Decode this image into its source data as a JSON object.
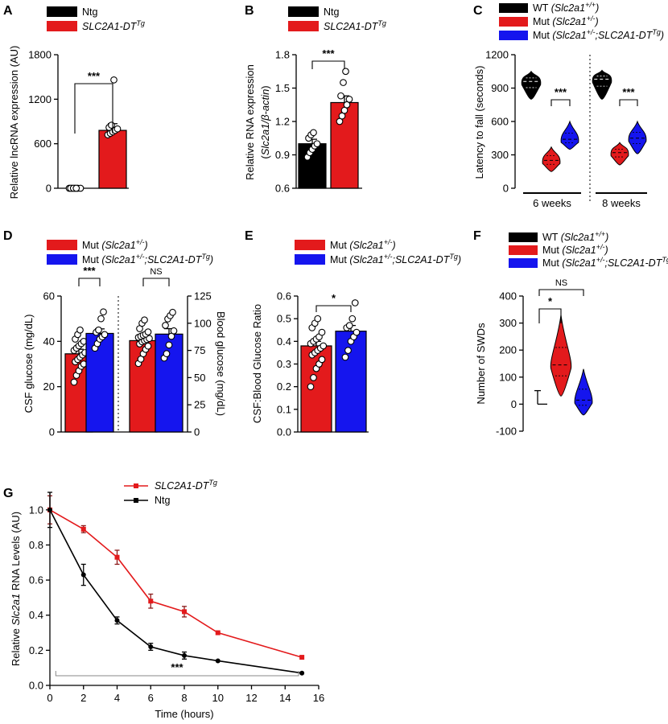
{
  "colors": {
    "ntg": "#000000",
    "tg": "#e31a1c",
    "mut": "#e31a1c",
    "mut_tg": "#1515ee",
    "wt": "#000000"
  },
  "panels": {
    "A": {
      "label": "A"
    },
    "B": {
      "label": "B"
    },
    "C": {
      "label": "C"
    },
    "D": {
      "label": "D"
    },
    "E": {
      "label": "E"
    },
    "F": {
      "label": "F"
    },
    "G": {
      "label": "G"
    }
  },
  "legends": {
    "A": [
      {
        "base": "Ntg",
        "sup": ""
      },
      {
        "base": "SLC2A1-DT",
        "sup": "Tg"
      }
    ],
    "B": [
      {
        "base": "Ntg",
        "sup": ""
      },
      {
        "base": "SLC2A1-DT",
        "sup": "Tg"
      }
    ],
    "C": [
      {
        "base": "WT (Slc2a1",
        "sup": "+/+",
        "tail": ")"
      },
      {
        "base": "Mut (Slc2a1",
        "sup": "+/-",
        "tail": ")"
      },
      {
        "base": "Mut (Slc2a1",
        "sup": "+/-",
        "mid": ";SLC2A1-DT",
        "sup2": "Tg",
        "tail": ")"
      }
    ],
    "D": [
      {
        "base": "Mut (Slc2a1",
        "sup": "+/-",
        "tail": ")"
      },
      {
        "base": "Mut (Slc2a1",
        "sup": "+/-",
        "mid": ";SLC2A1-DT",
        "sup2": "Tg",
        "tail": ")"
      }
    ],
    "E": [
      {
        "base": "Mut (Slc2a1",
        "sup": "+/-",
        "tail": ")"
      },
      {
        "base": "Mut (Slc2a1",
        "sup": "+/-",
        "mid": ";SLC2A1-DT",
        "sup2": "Tg",
        "tail": ")"
      }
    ],
    "F": [
      {
        "base": "WT (Slc2a1",
        "sup": "+/+",
        "tail": ")"
      },
      {
        "base": "Mut (Slc2a1",
        "sup": "+/-",
        "tail": ")"
      },
      {
        "base": "Mut (Slc2a1",
        "sup": "+/-",
        "mid": ";SLC2A1-DT",
        "sup2": "Tg",
        "tail": ")"
      }
    ],
    "G": [
      {
        "base": "SLC2A1-DT",
        "sup": "Tg"
      },
      {
        "base": "Ntg",
        "sup": ""
      }
    ]
  },
  "chart_data": [
    {
      "id": "A",
      "type": "bar",
      "ylabel": "Relative lncRNA expression (AU)",
      "ylim": [
        0,
        1800
      ],
      "yticks": [
        "0",
        "600",
        "1200",
        "1800"
      ],
      "categories": [
        "Ntg",
        "SLC2A1-DT Tg"
      ],
      "values": [
        0,
        780
      ],
      "errors": [
        0,
        90
      ],
      "points": [
        [
          0,
          0,
          0,
          0,
          0,
          0,
          0,
          0
        ],
        [
          720,
          740,
          760,
          780,
          800,
          820,
          850,
          1460
        ]
      ],
      "significance": [
        "***"
      ]
    },
    {
      "id": "B",
      "type": "bar",
      "ylabel": "Relative RNA expression",
      "ylabel2": "(Slc2a1/β-actin)",
      "ylim": [
        0.6,
        1.8
      ],
      "yticks": [
        "0.6",
        "0.9",
        "1.2",
        "1.5",
        "1.8"
      ],
      "categories": [
        "Ntg",
        "SLC2A1-DT Tg"
      ],
      "values": [
        1.0,
        1.37
      ],
      "errors": [
        0.04,
        0.06
      ],
      "points": [
        [
          0.88,
          0.92,
          0.95,
          0.98,
          1.0,
          1.05,
          1.08,
          1.1
        ],
        [
          1.2,
          1.25,
          1.3,
          1.35,
          1.4,
          1.43,
          1.55,
          1.65
        ]
      ],
      "significance": [
        "***"
      ]
    },
    {
      "id": "C",
      "type": "violin",
      "ylabel": "Latency to fall (seconds)",
      "ylim": [
        0,
        1200
      ],
      "yticks": [
        "0",
        "300",
        "600",
        "900",
        "1200"
      ],
      "groups": [
        "6 weeks",
        "8 weeks"
      ],
      "series": [
        "WT (Slc2a1+/+)",
        "Mut (Slc2a1+/-)",
        "Mut (Slc2a1+/-;SLC2A1-DTTg)"
      ],
      "medians": [
        [
          960,
          250,
          440
        ],
        [
          980,
          320,
          450
        ]
      ],
      "ranges": [
        [
          [
            800,
            1050
          ],
          [
            150,
            370
          ],
          [
            350,
            600
          ]
        ],
        [
          [
            800,
            1060
          ],
          [
            210,
            410
          ],
          [
            310,
            600
          ]
        ]
      ],
      "significance": [
        "***",
        "***"
      ]
    },
    {
      "id": "D",
      "type": "bar",
      "ylabel": "CSF glucose (mg/dL)",
      "ylabel_right": "Blood glucose (mg/dL)",
      "ylim": [
        0,
        60
      ],
      "yticks": [
        "0",
        "20",
        "40",
        "60"
      ],
      "ylim_right": [
        0,
        125
      ],
      "yticks_right": [
        "0",
        "25",
        "50",
        "75",
        "100",
        "125"
      ],
      "groups": [
        "CSF",
        "Blood"
      ],
      "values": [
        [
          34.5,
          43.5
        ],
        [
          84,
          90
        ]
      ],
      "errors": [
        [
          2,
          2
        ],
        [
          3,
          5
        ]
      ],
      "points": [
        [
          [
            22,
            25,
            27,
            29,
            30,
            31,
            32,
            33,
            34,
            35,
            36,
            37,
            38,
            39,
            40,
            41,
            43,
            45
          ],
          [
            37,
            39,
            41,
            42,
            43,
            44,
            45,
            50,
            53
          ]
        ],
        [
          [
            63,
            67,
            72,
            76,
            79,
            81,
            83,
            84,
            85,
            86,
            87,
            88,
            89,
            90,
            92,
            95,
            100,
            103
          ],
          [
            68,
            72,
            80,
            88,
            93,
            98,
            104,
            107,
            110
          ]
        ]
      ],
      "significance": [
        "***",
        "NS"
      ]
    },
    {
      "id": "E",
      "type": "bar",
      "ylabel": "CSF:Blood Glucose Ratio",
      "ylim": [
        0,
        0.6
      ],
      "yticks": [
        "0.0",
        "0.1",
        "0.2",
        "0.3",
        "0.4",
        "0.5",
        "0.6"
      ],
      "values": [
        0.38,
        0.445
      ],
      "errors": [
        0.02,
        0.025
      ],
      "points": [
        [
          0.2,
          0.24,
          0.28,
          0.3,
          0.32,
          0.34,
          0.35,
          0.36,
          0.37,
          0.38,
          0.39,
          0.4,
          0.41,
          0.42,
          0.44,
          0.46,
          0.48,
          0.5
        ],
        [
          0.33,
          0.36,
          0.4,
          0.42,
          0.44,
          0.46,
          0.47,
          0.5,
          0.57
        ]
      ],
      "significance": [
        "*"
      ]
    },
    {
      "id": "F",
      "type": "violin",
      "ylabel": "Number of SWDs",
      "ylim": [
        -100,
        400
      ],
      "yticks": [
        "-100",
        "0",
        "100",
        "200",
        "300",
        "400"
      ],
      "medians": [
        0,
        145,
        15
      ],
      "ranges": [
        [
          0,
          50
        ],
        [
          30,
          330
        ],
        [
          -40,
          130
        ]
      ],
      "significance": [
        "*",
        "NS"
      ]
    },
    {
      "id": "G",
      "type": "line",
      "xlabel": "Time (hours)",
      "ylabel_parts": [
        "Relative ",
        "Slc2a1",
        " RNA Levels (AU)"
      ],
      "xlim": [
        0,
        16
      ],
      "xticks": [
        "0",
        "2",
        "4",
        "6",
        "8",
        "10",
        "12",
        "14",
        "16"
      ],
      "ylim": [
        0,
        1.1
      ],
      "yticks": [
        "0.0",
        "0.2",
        "0.4",
        "0.6",
        "0.8",
        "1.0"
      ],
      "series": [
        {
          "name": "SLC2A1-DT Tg",
          "x": [
            0,
            2,
            4,
            6,
            8,
            10,
            15
          ],
          "y": [
            1.0,
            0.89,
            0.73,
            0.48,
            0.42,
            0.3,
            0.16
          ],
          "err": [
            0.08,
            0.02,
            0.04,
            0.04,
            0.03,
            0.0,
            0.0
          ]
        },
        {
          "name": "Ntg",
          "x": [
            0,
            2,
            4,
            6,
            8,
            10,
            15
          ],
          "y": [
            1.0,
            0.63,
            0.37,
            0.22,
            0.17,
            0.14,
            0.07
          ],
          "err": [
            0.1,
            0.06,
            0.02,
            0.02,
            0.02,
            0.0,
            0.0
          ]
        }
      ],
      "significance": [
        "***"
      ]
    }
  ]
}
